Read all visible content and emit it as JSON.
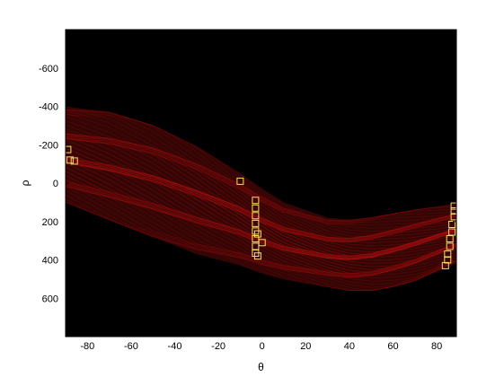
{
  "chart_data": {
    "type": "heatmap",
    "title": "",
    "xlabel": "θ",
    "ylabel": "ρ",
    "xlim": [
      -90,
      89
    ],
    "ylim": [
      -800,
      800
    ],
    "y_reversed": true,
    "grid": false,
    "x_ticks": [
      -80,
      -60,
      -40,
      -20,
      0,
      20,
      40,
      60,
      80
    ],
    "y_ticks": [
      -600,
      -400,
      -200,
      0,
      200,
      400,
      600
    ],
    "colors": {
      "background": "#000000",
      "accumulator": "#cc1111",
      "peak_marker": "#f0e060"
    },
    "accumulator_band": {
      "rho_min_at_theta": [
        [
          -90,
          -400
        ],
        [
          -70,
          -370
        ],
        [
          -50,
          -300
        ],
        [
          -30,
          -190
        ],
        [
          -10,
          -50
        ],
        [
          0,
          30
        ],
        [
          10,
          100
        ],
        [
          30,
          180
        ],
        [
          40,
          190
        ],
        [
          50,
          180
        ],
        [
          60,
          160
        ],
        [
          70,
          140
        ],
        [
          89,
          110
        ]
      ],
      "rho_max_at_theta": [
        [
          -90,
          100
        ],
        [
          -70,
          190
        ],
        [
          -50,
          280
        ],
        [
          -30,
          370
        ],
        [
          -10,
          430
        ],
        [
          0,
          470
        ],
        [
          10,
          500
        ],
        [
          30,
          540
        ],
        [
          40,
          560
        ],
        [
          50,
          560
        ],
        [
          60,
          540
        ],
        [
          70,
          510
        ],
        [
          89,
          420
        ]
      ]
    },
    "peaks": [
      {
        "theta": -89,
        "rho": -175
      },
      {
        "theta": -88,
        "rho": -120
      },
      {
        "theta": -86,
        "rho": -115
      },
      {
        "theta": -10,
        "rho": -10
      },
      {
        "theta": -3,
        "rho": 90
      },
      {
        "theta": -3,
        "rho": 130
      },
      {
        "theta": -3,
        "rho": 170
      },
      {
        "theta": -3,
        "rho": 210
      },
      {
        "theta": -3,
        "rho": 250
      },
      {
        "theta": -3,
        "rho": 290
      },
      {
        "theta": -3,
        "rho": 330
      },
      {
        "theta": -3,
        "rho": 365
      },
      {
        "theta": -2,
        "rho": 380
      },
      {
        "theta": -2,
        "rho": 265
      },
      {
        "theta": 0,
        "rho": 310
      },
      {
        "theta": 84,
        "rho": 430
      },
      {
        "theta": 85,
        "rho": 400
      },
      {
        "theta": 85,
        "rho": 370
      },
      {
        "theta": 86,
        "rho": 330
      },
      {
        "theta": 86,
        "rho": 290
      },
      {
        "theta": 87,
        "rho": 255
      },
      {
        "theta": 87,
        "rho": 215
      },
      {
        "theta": 88,
        "rho": 175
      },
      {
        "theta": 88,
        "rho": 145
      },
      {
        "theta": 88,
        "rho": 120
      }
    ]
  }
}
